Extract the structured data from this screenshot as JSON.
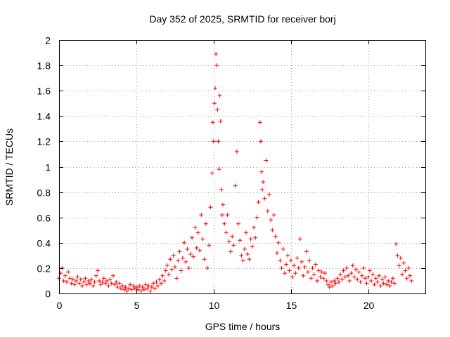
{
  "chart_data": {
    "type": "scatter",
    "title": "Day 352 of 2025, SRMTID for receiver borj",
    "xlabel": "GPS time / hours",
    "ylabel": "SRMTID / TECUs",
    "xlim": [
      0,
      23.7
    ],
    "ylim": [
      0,
      2
    ],
    "xticks": [
      0,
      5,
      10,
      15,
      20
    ],
    "yticks": [
      0,
      0.2,
      0.4,
      0.6,
      0.8,
      1,
      1.2,
      1.4,
      1.6,
      1.8,
      2
    ],
    "xtick_labels": [
      "0",
      "5",
      "10",
      "15",
      "20"
    ],
    "ytick_labels": [
      "0",
      "0.2",
      "0.4",
      "0.6",
      "0.8",
      "1",
      "1.2",
      "1.4",
      "1.6",
      "1.8",
      "2"
    ],
    "grid": true,
    "marker": "+",
    "color": "#ff0000",
    "series": [
      {
        "name": "borj",
        "points": [
          [
            0.0,
            0.12
          ],
          [
            0.1,
            0.16
          ],
          [
            0.2,
            0.2
          ],
          [
            0.3,
            0.1
          ],
          [
            0.4,
            0.14
          ],
          [
            0.5,
            0.09
          ],
          [
            0.6,
            0.17
          ],
          [
            0.7,
            0.12
          ],
          [
            0.8,
            0.08
          ],
          [
            0.9,
            0.11
          ],
          [
            1.0,
            0.07
          ],
          [
            1.1,
            0.1
          ],
          [
            1.2,
            0.13
          ],
          [
            1.3,
            0.08
          ],
          [
            1.4,
            0.11
          ],
          [
            1.5,
            0.06
          ],
          [
            1.6,
            0.09
          ],
          [
            1.7,
            0.12
          ],
          [
            1.8,
            0.07
          ],
          [
            1.9,
            0.1
          ],
          [
            2.0,
            0.08
          ],
          [
            2.1,
            0.11
          ],
          [
            2.2,
            0.06
          ],
          [
            2.3,
            0.09
          ],
          [
            2.4,
            0.14
          ],
          [
            2.5,
            0.18
          ],
          [
            2.6,
            0.1
          ],
          [
            2.7,
            0.07
          ],
          [
            2.8,
            0.09
          ],
          [
            2.9,
            0.12
          ],
          [
            3.0,
            0.08
          ],
          [
            3.1,
            0.1
          ],
          [
            3.2,
            0.06
          ],
          [
            3.3,
            0.11
          ],
          [
            3.4,
            0.08
          ],
          [
            3.5,
            0.14
          ],
          [
            3.6,
            0.07
          ],
          [
            3.7,
            0.09
          ],
          [
            3.8,
            0.05
          ],
          [
            3.9,
            0.08
          ],
          [
            4.0,
            0.04
          ],
          [
            4.1,
            0.06
          ],
          [
            4.2,
            0.03
          ],
          [
            4.3,
            0.05
          ],
          [
            4.4,
            0.02
          ],
          [
            4.5,
            0.04
          ],
          [
            4.6,
            0.07
          ],
          [
            4.7,
            0.03
          ],
          [
            4.8,
            0.06
          ],
          [
            4.9,
            0.04
          ],
          [
            5.0,
            0.05
          ],
          [
            5.1,
            0.03
          ],
          [
            5.2,
            0.06
          ],
          [
            5.3,
            0.02
          ],
          [
            5.4,
            0.05
          ],
          [
            5.5,
            0.03
          ],
          [
            5.6,
            0.07
          ],
          [
            5.7,
            0.04
          ],
          [
            5.8,
            0.06
          ],
          [
            5.9,
            0.02
          ],
          [
            6.0,
            0.05
          ],
          [
            6.1,
            0.08
          ],
          [
            6.2,
            0.04
          ],
          [
            6.3,
            0.09
          ],
          [
            6.4,
            0.06
          ],
          [
            6.5,
            0.11
          ],
          [
            6.6,
            0.08
          ],
          [
            6.7,
            0.14
          ],
          [
            6.8,
            0.1
          ],
          [
            6.9,
            0.18
          ],
          [
            7.0,
            0.22
          ],
          [
            7.1,
            0.15
          ],
          [
            7.2,
            0.27
          ],
          [
            7.3,
            0.19
          ],
          [
            7.4,
            0.3
          ],
          [
            7.5,
            0.21
          ],
          [
            7.6,
            0.12
          ],
          [
            7.7,
            0.26
          ],
          [
            7.8,
            0.33
          ],
          [
            7.9,
            0.18
          ],
          [
            8.0,
            0.28
          ],
          [
            8.1,
            0.4
          ],
          [
            8.2,
            0.25
          ],
          [
            8.3,
            0.35
          ],
          [
            8.4,
            0.2
          ],
          [
            8.5,
            0.31
          ],
          [
            8.6,
            0.44
          ],
          [
            8.7,
            0.29
          ],
          [
            8.8,
            0.52
          ],
          [
            8.9,
            0.36
          ],
          [
            9.0,
            0.48
          ],
          [
            9.1,
            0.34
          ],
          [
            9.2,
            0.62
          ],
          [
            9.3,
            0.43
          ],
          [
            9.4,
            0.27
          ],
          [
            9.5,
            0.55
          ],
          [
            9.6,
            0.2
          ],
          [
            9.7,
            0.38
          ],
          [
            9.8,
            0.68
          ],
          [
            9.9,
            0.95
          ],
          [
            9.95,
            1.35
          ],
          [
            10.0,
            1.2
          ],
          [
            10.05,
            1.5
          ],
          [
            10.1,
            1.62
          ],
          [
            10.15,
            1.89
          ],
          [
            10.2,
            1.8
          ],
          [
            10.25,
            1.45
          ],
          [
            10.3,
            1.2
          ],
          [
            10.35,
            0.98
          ],
          [
            10.4,
            1.56
          ],
          [
            10.45,
            1.36
          ],
          [
            10.5,
            0.82
          ],
          [
            10.55,
            0.62
          ],
          [
            10.6,
            0.7
          ],
          [
            10.7,
            0.55
          ],
          [
            10.8,
            0.48
          ],
          [
            10.9,
            0.62
          ],
          [
            11.0,
            0.41
          ],
          [
            11.1,
            0.33
          ],
          [
            11.2,
            0.45
          ],
          [
            11.3,
            0.38
          ],
          [
            11.4,
            0.85
          ],
          [
            11.5,
            1.12
          ],
          [
            11.6,
            0.55
          ],
          [
            11.7,
            0.42
          ],
          [
            11.8,
            0.3
          ],
          [
            11.9,
            0.26
          ],
          [
            12.0,
            0.35
          ],
          [
            12.1,
            0.48
          ],
          [
            12.2,
            0.31
          ],
          [
            12.3,
            0.27
          ],
          [
            12.4,
            0.43
          ],
          [
            12.5,
            0.37
          ],
          [
            12.6,
            0.52
          ],
          [
            12.7,
            0.44
          ],
          [
            12.8,
            0.6
          ],
          [
            12.9,
            0.72
          ],
          [
            13.0,
            1.35
          ],
          [
            13.05,
            1.2
          ],
          [
            13.1,
            0.96
          ],
          [
            13.15,
            0.82
          ],
          [
            13.2,
            0.88
          ],
          [
            13.3,
            0.75
          ],
          [
            13.4,
            1.05
          ],
          [
            13.5,
            0.65
          ],
          [
            13.6,
            0.78
          ],
          [
            13.7,
            0.58
          ],
          [
            13.8,
            0.5
          ],
          [
            13.9,
            0.62
          ],
          [
            14.0,
            0.45
          ],
          [
            14.1,
            0.32
          ],
          [
            14.2,
            0.4
          ],
          [
            14.3,
            0.26
          ],
          [
            14.4,
            0.2
          ],
          [
            14.5,
            0.35
          ],
          [
            14.6,
            0.16
          ],
          [
            14.7,
            0.23
          ],
          [
            14.8,
            0.3
          ],
          [
            14.9,
            0.18
          ],
          [
            15.0,
            0.26
          ],
          [
            15.1,
            0.13
          ],
          [
            15.2,
            0.22
          ],
          [
            15.3,
            0.16
          ],
          [
            15.4,
            0.28
          ],
          [
            15.5,
            0.2
          ],
          [
            15.6,
            0.43
          ],
          [
            15.7,
            0.25
          ],
          [
            15.8,
            0.14
          ],
          [
            15.9,
            0.21
          ],
          [
            16.0,
            0.33
          ],
          [
            16.1,
            0.17
          ],
          [
            16.2,
            0.26
          ],
          [
            16.3,
            0.12
          ],
          [
            16.4,
            0.2
          ],
          [
            16.5,
            0.15
          ],
          [
            16.6,
            0.23
          ],
          [
            16.7,
            0.1
          ],
          [
            16.8,
            0.18
          ],
          [
            16.9,
            0.13
          ],
          [
            17.0,
            0.17
          ],
          [
            17.1,
            0.12
          ],
          [
            17.2,
            0.16
          ],
          [
            17.3,
            0.1
          ],
          [
            17.4,
            0.07
          ],
          [
            17.5,
            0.05
          ],
          [
            17.6,
            0.09
          ],
          [
            17.7,
            0.06
          ],
          [
            17.8,
            0.1
          ],
          [
            17.9,
            0.08
          ],
          [
            18.0,
            0.12
          ],
          [
            18.1,
            0.09
          ],
          [
            18.2,
            0.15
          ],
          [
            18.3,
            0.11
          ],
          [
            18.4,
            0.18
          ],
          [
            18.5,
            0.13
          ],
          [
            18.6,
            0.2
          ],
          [
            18.7,
            0.14
          ],
          [
            18.8,
            0.1
          ],
          [
            18.9,
            0.16
          ],
          [
            19.0,
            0.22
          ],
          [
            19.1,
            0.13
          ],
          [
            19.2,
            0.19
          ],
          [
            19.3,
            0.11
          ],
          [
            19.4,
            0.17
          ],
          [
            19.5,
            0.09
          ],
          [
            19.6,
            0.14
          ],
          [
            19.7,
            0.2
          ],
          [
            19.8,
            0.12
          ],
          [
            19.9,
            0.08
          ],
          [
            20.0,
            0.13
          ],
          [
            20.1,
            0.18
          ],
          [
            20.2,
            0.1
          ],
          [
            20.3,
            0.15
          ],
          [
            20.4,
            0.07
          ],
          [
            20.5,
            0.12
          ],
          [
            20.6,
            0.09
          ],
          [
            20.7,
            0.14
          ],
          [
            20.8,
            0.06
          ],
          [
            20.9,
            0.11
          ],
          [
            21.0,
            0.08
          ],
          [
            21.1,
            0.13
          ],
          [
            21.2,
            0.07
          ],
          [
            21.3,
            0.1
          ],
          [
            21.4,
            0.06
          ],
          [
            21.5,
            0.09
          ],
          [
            21.6,
            0.12
          ],
          [
            21.7,
            0.08
          ],
          [
            21.8,
            0.39
          ],
          [
            21.9,
            0.3
          ],
          [
            22.0,
            0.22
          ],
          [
            22.1,
            0.28
          ],
          [
            22.2,
            0.15
          ],
          [
            22.3,
            0.24
          ],
          [
            22.4,
            0.18
          ],
          [
            22.5,
            0.12
          ],
          [
            22.6,
            0.2
          ],
          [
            22.7,
            0.14
          ],
          [
            22.8,
            0.1
          ]
        ]
      }
    ]
  }
}
